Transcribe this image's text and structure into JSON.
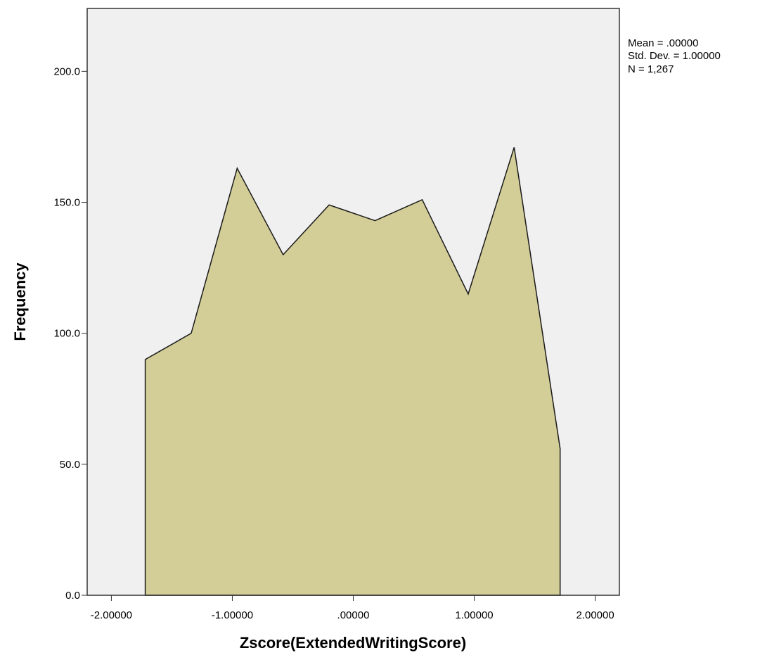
{
  "chart_data": {
    "type": "area",
    "title": "",
    "xlabel": "Zscore(ExtendedWritingScore)",
    "ylabel": "Frequency",
    "xlim": [
      -2.2,
      2.2
    ],
    "ylim": [
      0,
      224
    ],
    "x_ticks": [
      -2,
      -1,
      0,
      1,
      2
    ],
    "x_tick_labels": [
      "-2.00000",
      "-1.00000",
      ".00000",
      "1.00000",
      "2.00000"
    ],
    "y_ticks": [
      0,
      50,
      100,
      150,
      200
    ],
    "y_tick_labels": [
      "0.0",
      "50.0",
      "100.0",
      "150.0",
      "200.0"
    ],
    "grid": false,
    "legend": "none",
    "colors": {
      "fill": "#d3cd97",
      "stroke": "#1a1a1a",
      "plot_background": "#f0f0f0",
      "frame": "#333333"
    },
    "x": [
      -1.72,
      -1.34,
      -0.96,
      -0.58,
      -0.2,
      0.18,
      0.57,
      0.95,
      1.33,
      1.71
    ],
    "y": [
      90,
      100,
      163,
      130,
      149,
      143,
      151,
      115,
      171,
      56
    ],
    "stats": [
      "Mean = .00000",
      "Std. Dev. = 1.00000",
      "N = 1,267"
    ]
  }
}
